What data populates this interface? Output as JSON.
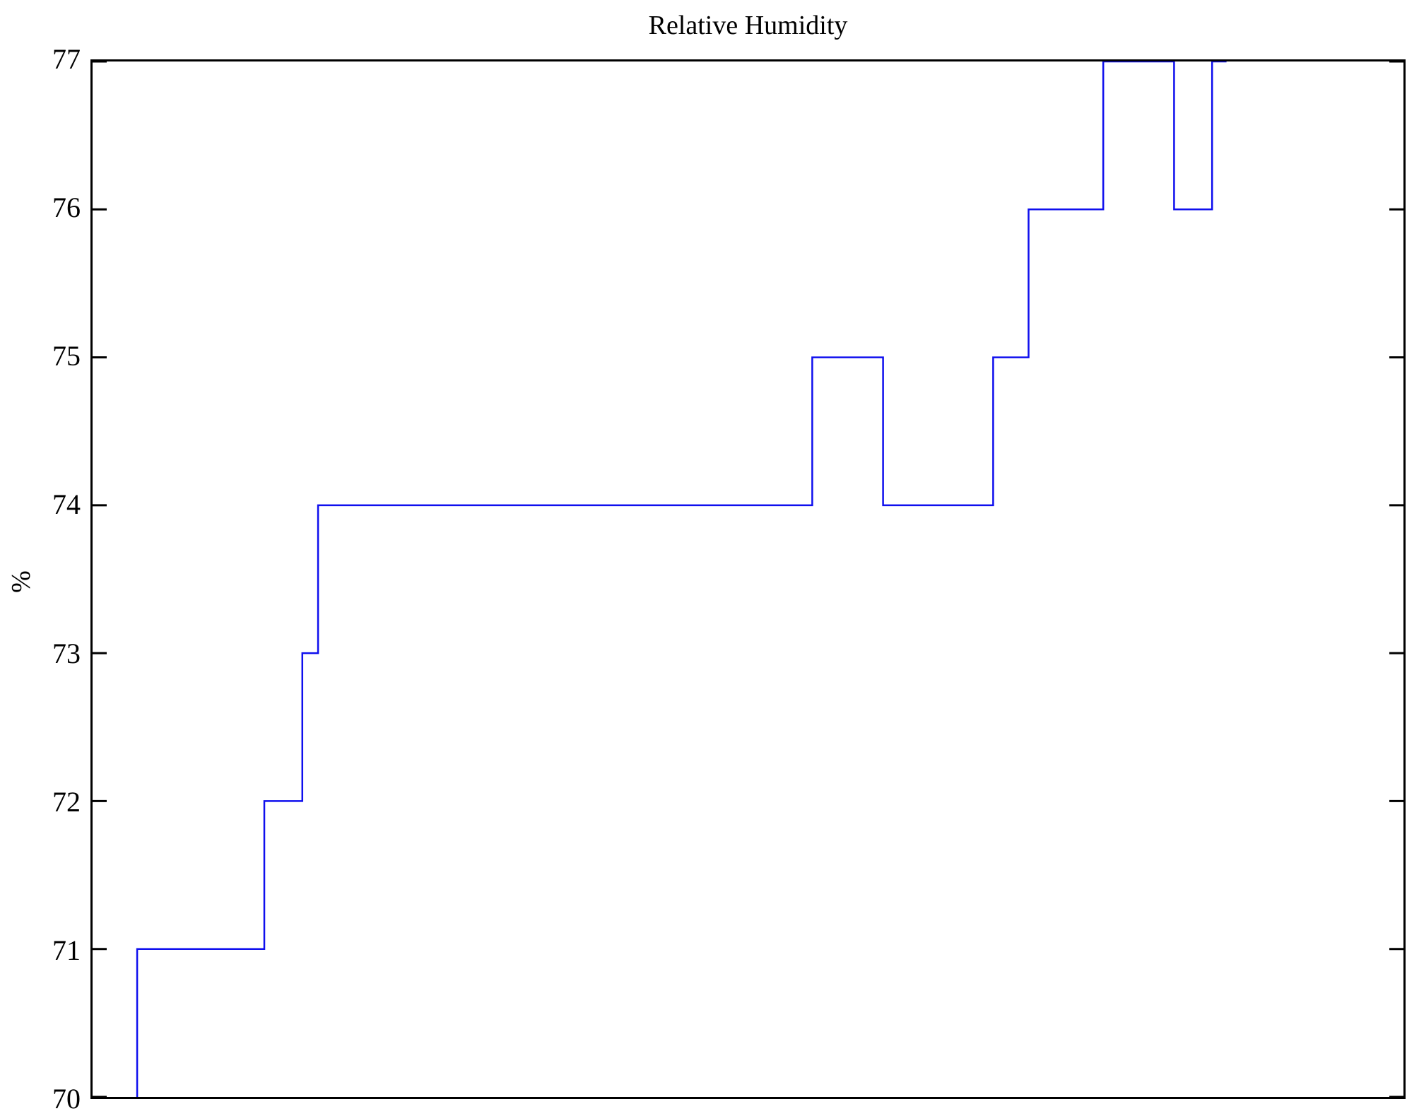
{
  "chart_data": {
    "type": "line",
    "subtype": "step",
    "title": "Relative Humidity",
    "ylabel": "%",
    "xlabel": "",
    "ylim": [
      70,
      77
    ],
    "yticks": [
      70,
      71,
      72,
      73,
      74,
      75,
      76,
      77
    ],
    "xticks": [],
    "grid": false,
    "legend": null,
    "line_color": "#0F0FEE",
    "axis_color": "#000000",
    "background": "#FFFFFF",
    "x_units": "fraction of plot width (x-axis has no visible tick labels)",
    "series": [
      {
        "name": "Relative Humidity",
        "points": [
          [
            0.034,
            70
          ],
          [
            0.034,
            71
          ],
          [
            0.131,
            71
          ],
          [
            0.131,
            72
          ],
          [
            0.16,
            72
          ],
          [
            0.16,
            73
          ],
          [
            0.172,
            73
          ],
          [
            0.172,
            74
          ],
          [
            0.549,
            74
          ],
          [
            0.549,
            75
          ],
          [
            0.603,
            75
          ],
          [
            0.603,
            74
          ],
          [
            0.687,
            74
          ],
          [
            0.687,
            75
          ],
          [
            0.714,
            75
          ],
          [
            0.714,
            76
          ],
          [
            0.771,
            76
          ],
          [
            0.771,
            77
          ],
          [
            0.825,
            77
          ],
          [
            0.825,
            76
          ],
          [
            0.854,
            76
          ],
          [
            0.854,
            77
          ],
          [
            0.865,
            77
          ]
        ]
      }
    ]
  }
}
